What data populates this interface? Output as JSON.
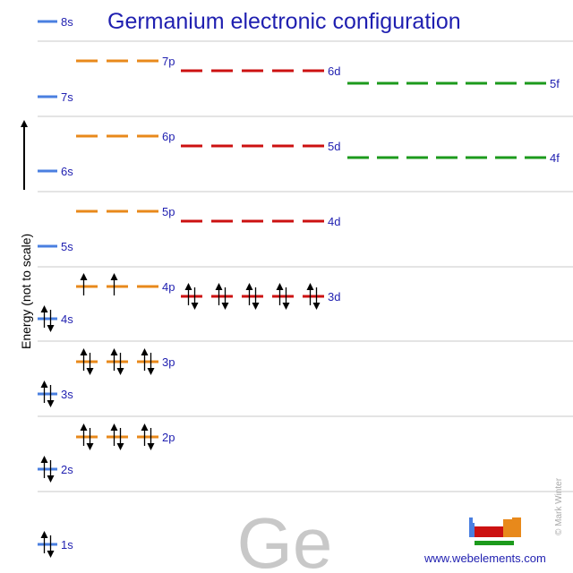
{
  "title": "Germanium electronic configuration",
  "element_symbol": "Ge",
  "y_axis_label": "Energy (not to scale)",
  "website": "www.webelements.com",
  "copyright": "© Mark Winter",
  "colors": {
    "s": "#4a7fe0",
    "p": "#e8891b",
    "d": "#cc1111",
    "f": "#1c9a1c",
    "title": "#1f1fb0",
    "label": "#1f1fb0",
    "separator": "#c8c8c8",
    "symbol": "#c8c8c8"
  },
  "orbitals": [
    {
      "label": "1s",
      "type": "s",
      "electrons": 2
    },
    {
      "label": "2s",
      "type": "s",
      "electrons": 2
    },
    {
      "label": "2p",
      "type": "p",
      "electrons": 6
    },
    {
      "label": "3s",
      "type": "s",
      "electrons": 2
    },
    {
      "label": "3p",
      "type": "p",
      "electrons": 6
    },
    {
      "label": "4s",
      "type": "s",
      "electrons": 2
    },
    {
      "label": "4p",
      "type": "p",
      "electrons": 2
    },
    {
      "label": "3d",
      "type": "d",
      "electrons": 10
    },
    {
      "label": "5s",
      "type": "s",
      "electrons": 0
    },
    {
      "label": "5p",
      "type": "p",
      "electrons": 0
    },
    {
      "label": "4d",
      "type": "d",
      "electrons": 0
    },
    {
      "label": "6s",
      "type": "s",
      "electrons": 0
    },
    {
      "label": "6p",
      "type": "p",
      "electrons": 0
    },
    {
      "label": "5d",
      "type": "d",
      "electrons": 0
    },
    {
      "label": "4f",
      "type": "f",
      "electrons": 0
    },
    {
      "label": "7s",
      "type": "s",
      "electrons": 0
    },
    {
      "label": "7p",
      "type": "p",
      "electrons": 0
    },
    {
      "label": "6d",
      "type": "d",
      "electrons": 0
    },
    {
      "label": "5f",
      "type": "f",
      "electrons": 0
    },
    {
      "label": "8s",
      "type": "s",
      "electrons": 0
    }
  ]
}
